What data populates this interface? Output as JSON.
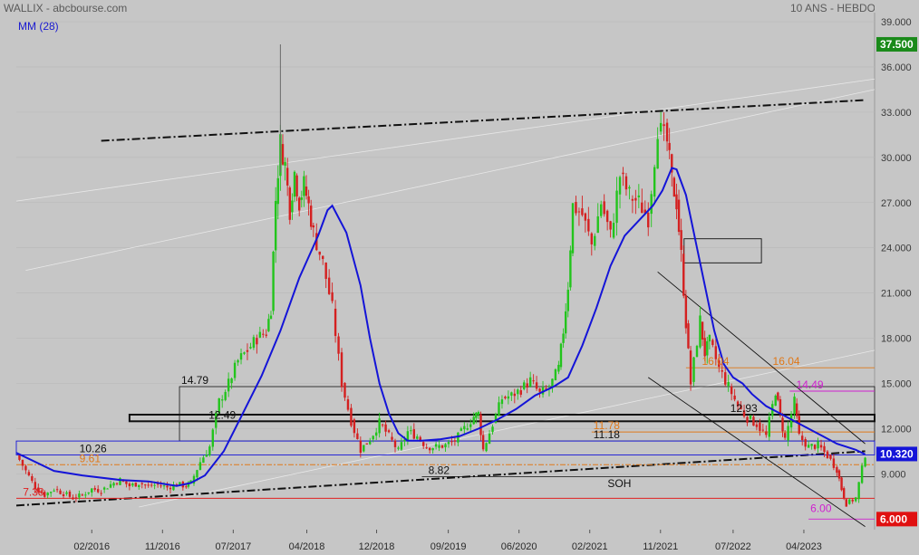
{
  "header": {
    "title": "WALLIX - abcbourse.com",
    "period": "10 ANS - HEBDO",
    "ma_label": "MM (28)"
  },
  "colors": {
    "background": "#c6c6c6",
    "ma_line": "#1414d8",
    "candle_up": "#22c41c",
    "candle_down": "#d42020",
    "resistance_orange": "#e07818",
    "magenta": "#d020d0",
    "red_line": "#e02020",
    "last_price_badge": "#1a8a1a",
    "price_badge_blue": "#1414d8",
    "low_badge": "#e01010",
    "high_badge": "#1a8a1a"
  },
  "chart_data": {
    "type": "candlestick",
    "ma_period": 28,
    "ylim": [
      5.3,
      39.6
    ],
    "y_ticks": [
      "39.000",
      "36.000",
      "33.000",
      "30.000",
      "27.000",
      "24.000",
      "21.000",
      "18.000",
      "15.000",
      "12.000",
      "9.000"
    ],
    "x_ticks": [
      "02/2016",
      "11/2016",
      "07/2017",
      "04/2018",
      "12/2018",
      "09/2019",
      "06/2020",
      "02/2021",
      "11/2021",
      "07/2022",
      "04/2023"
    ],
    "xlim": [
      2015.3,
      2024.4
    ],
    "price_badges": {
      "high": "37.500",
      "current": "10.320",
      "low": "6.000"
    },
    "close_series": [
      [
        2015.3,
        10.3
      ],
      [
        2015.4,
        9.2
      ],
      [
        2015.5,
        8.1
      ],
      [
        2015.6,
        7.6
      ],
      [
        2015.7,
        8.0
      ],
      [
        2015.8,
        7.7
      ],
      [
        2015.9,
        7.4
      ],
      [
        2016.0,
        7.6
      ],
      [
        2016.1,
        8.0
      ],
      [
        2016.2,
        7.9
      ],
      [
        2016.3,
        8.3
      ],
      [
        2016.4,
        8.6
      ],
      [
        2016.5,
        8.2
      ],
      [
        2016.6,
        8.4
      ],
      [
        2016.7,
        8.2
      ],
      [
        2016.8,
        8.3
      ],
      [
        2016.9,
        8.1
      ],
      [
        2017.0,
        8.3
      ],
      [
        2017.1,
        8.2
      ],
      [
        2017.15,
        8.4
      ],
      [
        2017.25,
        9.8
      ],
      [
        2017.35,
        10.8
      ],
      [
        2017.45,
        13.8
      ],
      [
        2017.55,
        15.0
      ],
      [
        2017.65,
        16.5
      ],
      [
        2017.75,
        17.2
      ],
      [
        2017.85,
        18.0
      ],
      [
        2017.95,
        18.4
      ],
      [
        2018.0,
        20.0
      ],
      [
        2018.05,
        27.2
      ],
      [
        2018.1,
        31.0
      ],
      [
        2018.15,
        29.5
      ],
      [
        2018.2,
        26.5
      ],
      [
        2018.25,
        29.0
      ],
      [
        2018.3,
        27.0
      ],
      [
        2018.35,
        28.2
      ],
      [
        2018.4,
        26.8
      ],
      [
        2018.45,
        25.0
      ],
      [
        2018.55,
        23.0
      ],
      [
        2018.65,
        20.0
      ],
      [
        2018.75,
        15.0
      ],
      [
        2018.85,
        12.5
      ],
      [
        2018.95,
        10.6
      ],
      [
        2019.05,
        11.3
      ],
      [
        2019.15,
        12.4
      ],
      [
        2019.25,
        11.5
      ],
      [
        2019.35,
        10.5
      ],
      [
        2019.45,
        11.8
      ],
      [
        2019.55,
        11.5
      ],
      [
        2019.65,
        10.8
      ],
      [
        2019.75,
        10.8
      ],
      [
        2019.85,
        10.9
      ],
      [
        2019.95,
        11.2
      ],
      [
        2020.05,
        12.0
      ],
      [
        2020.15,
        12.8
      ],
      [
        2020.2,
        13.0
      ],
      [
        2020.25,
        10.6
      ],
      [
        2020.35,
        12.3
      ],
      [
        2020.45,
        14.0
      ],
      [
        2020.55,
        14.2
      ],
      [
        2020.65,
        14.6
      ],
      [
        2020.75,
        15.2
      ],
      [
        2020.85,
        14.3
      ],
      [
        2020.95,
        14.7
      ],
      [
        2021.05,
        16.0
      ],
      [
        2021.1,
        18.5
      ],
      [
        2021.15,
        21.5
      ],
      [
        2021.2,
        26.8
      ],
      [
        2021.3,
        26.2
      ],
      [
        2021.4,
        24.2
      ],
      [
        2021.5,
        27.0
      ],
      [
        2021.6,
        24.8
      ],
      [
        2021.7,
        28.8
      ],
      [
        2021.8,
        27.5
      ],
      [
        2021.9,
        27.0
      ],
      [
        2022.0,
        26.0
      ],
      [
        2022.1,
        32.0
      ],
      [
        2022.2,
        31.0
      ],
      [
        2022.25,
        28.5
      ],
      [
        2022.3,
        27.0
      ],
      [
        2022.35,
        23.5
      ],
      [
        2022.4,
        19.0
      ],
      [
        2022.45,
        15.0
      ],
      [
        2022.55,
        19.2
      ],
      [
        2022.6,
        17.0
      ],
      [
        2022.65,
        17.8
      ],
      [
        2022.75,
        16.0
      ],
      [
        2022.85,
        14.8
      ],
      [
        2022.95,
        13.5
      ],
      [
        2023.05,
        12.7
      ],
      [
        2023.15,
        12.3
      ],
      [
        2023.25,
        11.5
      ],
      [
        2023.35,
        14.5
      ],
      [
        2023.4,
        12.8
      ],
      [
        2023.45,
        11.3
      ],
      [
        2023.55,
        13.8
      ],
      [
        2023.6,
        11.5
      ],
      [
        2023.7,
        10.8
      ],
      [
        2023.8,
        10.9
      ],
      [
        2023.9,
        10.2
      ],
      [
        2024.0,
        9.3
      ],
      [
        2024.05,
        8.0
      ],
      [
        2024.1,
        7.0
      ],
      [
        2024.2,
        7.4
      ],
      [
        2024.3,
        10.3
      ]
    ],
    "volatile_wicks": [
      {
        "x": 2018.1,
        "high": 37.5,
        "low": 29.0
      }
    ],
    "ma_series": [
      [
        2015.3,
        10.4
      ],
      [
        2015.7,
        9.2
      ],
      [
        2016.0,
        8.9
      ],
      [
        2016.4,
        8.6
      ],
      [
        2016.7,
        8.5
      ],
      [
        2017.0,
        8.2
      ],
      [
        2017.15,
        8.4
      ],
      [
        2017.3,
        8.9
      ],
      [
        2017.5,
        10.5
      ],
      [
        2017.7,
        13.0
      ],
      [
        2017.9,
        15.5
      ],
      [
        2018.1,
        18.5
      ],
      [
        2018.3,
        22.0
      ],
      [
        2018.5,
        24.8
      ],
      [
        2018.6,
        26.5
      ],
      [
        2018.65,
        26.8
      ],
      [
        2018.8,
        25.0
      ],
      [
        2018.95,
        21.5
      ],
      [
        2019.05,
        18.0
      ],
      [
        2019.15,
        15.0
      ],
      [
        2019.25,
        13.0
      ],
      [
        2019.35,
        11.7
      ],
      [
        2019.45,
        11.2
      ],
      [
        2019.6,
        11.2
      ],
      [
        2019.8,
        11.3
      ],
      [
        2020.0,
        11.5
      ],
      [
        2020.2,
        12.0
      ],
      [
        2020.4,
        12.6
      ],
      [
        2020.6,
        13.3
      ],
      [
        2020.8,
        14.2
      ],
      [
        2021.0,
        14.8
      ],
      [
        2021.15,
        15.4
      ],
      [
        2021.3,
        17.5
      ],
      [
        2021.45,
        20.0
      ],
      [
        2021.6,
        22.8
      ],
      [
        2021.75,
        24.8
      ],
      [
        2021.9,
        25.8
      ],
      [
        2022.05,
        26.8
      ],
      [
        2022.15,
        27.8
      ],
      [
        2022.25,
        29.3
      ],
      [
        2022.3,
        29.2
      ],
      [
        2022.4,
        27.5
      ],
      [
        2022.5,
        24.5
      ],
      [
        2022.6,
        21.5
      ],
      [
        2022.7,
        18.5
      ],
      [
        2022.8,
        16.3
      ],
      [
        2022.9,
        15.4
      ],
      [
        2023.0,
        15.0
      ],
      [
        2023.1,
        14.3
      ],
      [
        2023.25,
        13.5
      ],
      [
        2023.4,
        13.0
      ],
      [
        2023.55,
        12.5
      ],
      [
        2023.7,
        12.0
      ],
      [
        2023.85,
        11.5
      ],
      [
        2024.0,
        11.0
      ],
      [
        2024.2,
        10.6
      ],
      [
        2024.3,
        10.3
      ]
    ],
    "annotations": [
      {
        "text": "14.79",
        "x": 2017.03,
        "y": 14.79,
        "color": "#111111"
      },
      {
        "text": "12.49",
        "x": 2017.32,
        "y": 12.49,
        "color": "#111111"
      },
      {
        "text": "10.26",
        "x": 2015.95,
        "y": 10.26,
        "color": "#111111"
      },
      {
        "text": "9.61",
        "x": 2015.95,
        "y": 9.61,
        "color": "#e07818"
      },
      {
        "text": "7.38",
        "x": 2015.35,
        "y": 7.38,
        "color": "#e02020"
      },
      {
        "text": "8.82",
        "x": 2019.65,
        "y": 8.82,
        "color": "#111111"
      },
      {
        "text": "SOH",
        "x": 2021.55,
        "y": 7.95,
        "color": "#111111"
      },
      {
        "text": "12.93",
        "x": 2022.85,
        "y": 12.93,
        "color": "#111111"
      },
      {
        "text": "11.78",
        "x": 2021.4,
        "y": 11.78,
        "color": "#e07818"
      },
      {
        "text": "11.18",
        "x": 2021.4,
        "y": 11.18,
        "color": "#111111"
      },
      {
        "text": "16.04",
        "x": 2022.55,
        "y": 16.04,
        "color": "#e07818"
      },
      {
        "text": "16.04",
        "x": 2023.3,
        "y": 16.04,
        "color": "#e07818"
      },
      {
        "text": "14.49",
        "x": 2023.55,
        "y": 14.49,
        "color": "#d020d0"
      },
      {
        "text": "6.00",
        "x": 2023.7,
        "y": 6.3,
        "color": "#d020d0"
      }
    ]
  }
}
